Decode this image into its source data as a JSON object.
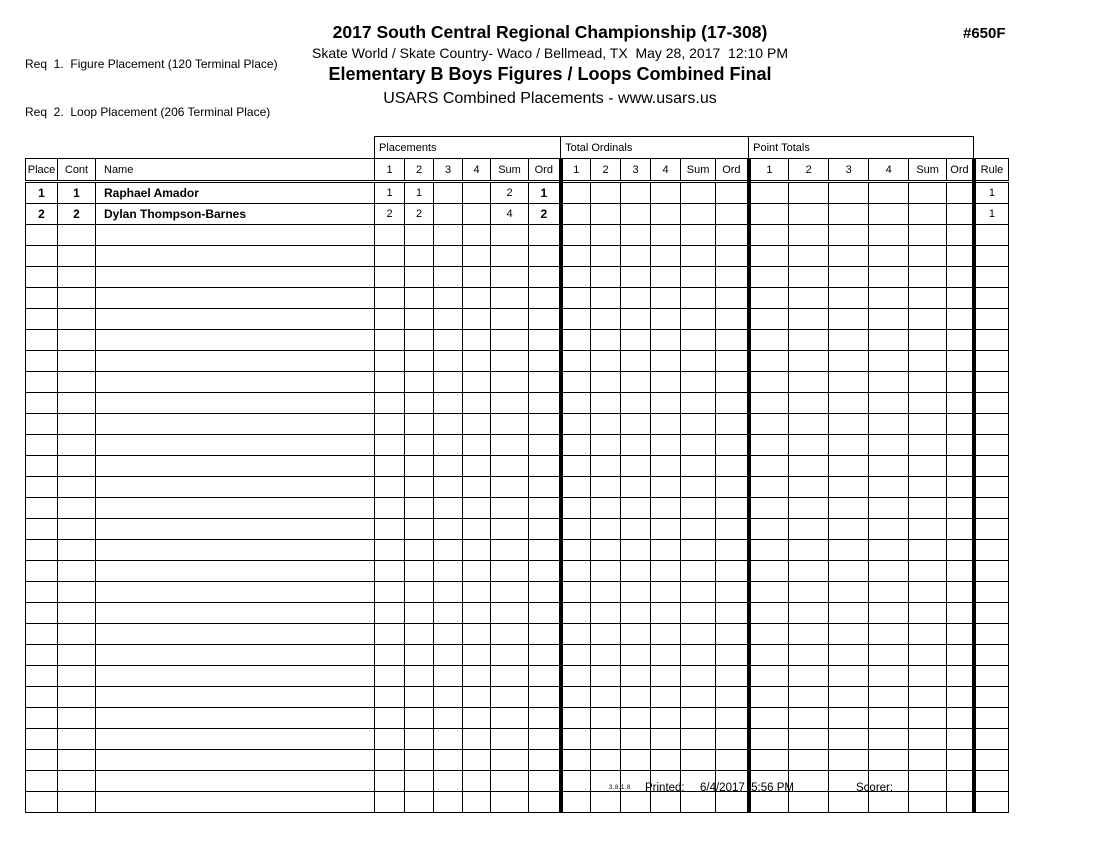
{
  "header": {
    "req_lines": [
      "Req  1.  Figure Placement (120 Terminal Place)",
      "Req  2.  Loop Placement (206 Terminal Place)"
    ],
    "title": "2017 South Central Regional Championship (17-308)",
    "sheet_number": "#650F",
    "venue_date_line": "Skate World / Skate Country- Waco / Bellmead, TX  May 28, 2017  12:10 PM",
    "event_title": "Elementary B Boys Figures / Loops Combined Final",
    "subtitle": "USARS Combined Placements - www.usars.us"
  },
  "table": {
    "left_columns": [
      "Place",
      "Cont",
      "Name"
    ],
    "groups": [
      {
        "label": "Placements",
        "columns": [
          "1",
          "2",
          "3",
          "4",
          "Sum",
          "Ord"
        ]
      },
      {
        "label": "Total Ordinals",
        "columns": [
          "1",
          "2",
          "3",
          "4",
          "Sum",
          "Ord"
        ]
      },
      {
        "label": "Point Totals",
        "columns": [
          "1",
          "2",
          "3",
          "4",
          "Sum",
          "Ord"
        ]
      }
    ],
    "rule_column": "Rule",
    "rows": [
      {
        "place": "1",
        "cont": "1",
        "name": "Raphael Amador",
        "placements": [
          "1",
          "1",
          "",
          "",
          "2",
          "1"
        ],
        "total_ordinals": [
          "",
          "",
          "",
          "",
          "",
          ""
        ],
        "point_totals": [
          "",
          "",
          "",
          "",
          "",
          ""
        ],
        "rule": "1"
      },
      {
        "place": "2",
        "cont": "2",
        "name": "Dylan Thompson-Barnes",
        "placements": [
          "2",
          "2",
          "",
          "",
          "4",
          "2"
        ],
        "total_ordinals": [
          "",
          "",
          "",
          "",
          "",
          ""
        ],
        "point_totals": [
          "",
          "",
          "",
          "",
          "",
          ""
        ],
        "rule": "1"
      }
    ],
    "empty_row_count": 28
  },
  "footer": {
    "version": "3.8.1.8",
    "printed_label": "Printed:",
    "printed_datetime": "6/4/2017  5:56 PM",
    "scorer_label": "Scorer:"
  }
}
